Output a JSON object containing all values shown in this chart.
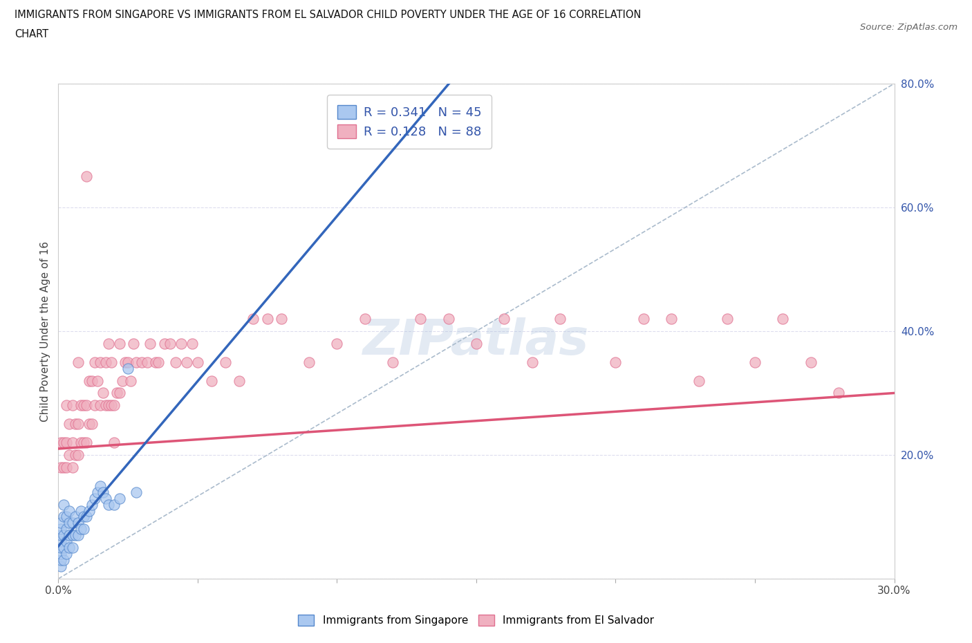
{
  "title_line1": "IMMIGRANTS FROM SINGAPORE VS IMMIGRANTS FROM EL SALVADOR CHILD POVERTY UNDER THE AGE OF 16 CORRELATION",
  "title_line2": "CHART",
  "source_text": "Source: ZipAtlas.com",
  "ylabel": "Child Poverty Under the Age of 16",
  "x_min": 0.0,
  "x_max": 0.3,
  "y_min": 0.0,
  "y_max": 0.8,
  "singapore_color": "#aac8f0",
  "singapore_edge_color": "#5588cc",
  "el_salvador_color": "#f0b0c0",
  "el_salvador_edge_color": "#e07090",
  "singapore_line_color": "#3366bb",
  "el_salvador_line_color": "#dd5577",
  "R_singapore": 0.341,
  "N_singapore": 45,
  "R_el_salvador": 0.128,
  "N_el_salvador": 88,
  "legend_text_color": "#3355aa",
  "diag_color": "#aabbcc",
  "grid_color": "#ddddee",
  "singapore_x": [
    0.001,
    0.001,
    0.001,
    0.001,
    0.001,
    0.001,
    0.001,
    0.001,
    0.002,
    0.002,
    0.002,
    0.002,
    0.002,
    0.003,
    0.003,
    0.003,
    0.003,
    0.004,
    0.004,
    0.004,
    0.004,
    0.005,
    0.005,
    0.005,
    0.006,
    0.006,
    0.007,
    0.007,
    0.008,
    0.008,
    0.009,
    0.009,
    0.01,
    0.011,
    0.012,
    0.013,
    0.014,
    0.015,
    0.016,
    0.017,
    0.018,
    0.02,
    0.022,
    0.025,
    0.028
  ],
  "singapore_y": [
    0.02,
    0.03,
    0.04,
    0.05,
    0.06,
    0.07,
    0.08,
    0.09,
    0.03,
    0.05,
    0.07,
    0.1,
    0.12,
    0.04,
    0.06,
    0.08,
    0.1,
    0.05,
    0.07,
    0.09,
    0.11,
    0.05,
    0.07,
    0.09,
    0.07,
    0.1,
    0.07,
    0.09,
    0.08,
    0.11,
    0.08,
    0.1,
    0.1,
    0.11,
    0.12,
    0.13,
    0.14,
    0.15,
    0.14,
    0.13,
    0.12,
    0.12,
    0.13,
    0.34,
    0.14
  ],
  "el_salvador_x": [
    0.001,
    0.001,
    0.002,
    0.002,
    0.003,
    0.003,
    0.003,
    0.004,
    0.004,
    0.005,
    0.005,
    0.005,
    0.006,
    0.006,
    0.007,
    0.007,
    0.007,
    0.008,
    0.008,
    0.009,
    0.009,
    0.01,
    0.01,
    0.011,
    0.011,
    0.012,
    0.012,
    0.013,
    0.013,
    0.014,
    0.015,
    0.015,
    0.016,
    0.017,
    0.017,
    0.018,
    0.018,
    0.019,
    0.019,
    0.02,
    0.021,
    0.022,
    0.022,
    0.023,
    0.024,
    0.025,
    0.026,
    0.027,
    0.028,
    0.03,
    0.032,
    0.033,
    0.035,
    0.036,
    0.038,
    0.04,
    0.042,
    0.044,
    0.046,
    0.048,
    0.05,
    0.055,
    0.06,
    0.065,
    0.07,
    0.075,
    0.08,
    0.09,
    0.1,
    0.11,
    0.12,
    0.13,
    0.14,
    0.15,
    0.16,
    0.17,
    0.18,
    0.2,
    0.21,
    0.22,
    0.23,
    0.24,
    0.25,
    0.26,
    0.27,
    0.28,
    0.01,
    0.02
  ],
  "el_salvador_y": [
    0.18,
    0.22,
    0.18,
    0.22,
    0.18,
    0.22,
    0.28,
    0.2,
    0.25,
    0.18,
    0.22,
    0.28,
    0.2,
    0.25,
    0.2,
    0.25,
    0.35,
    0.22,
    0.28,
    0.22,
    0.28,
    0.22,
    0.28,
    0.25,
    0.32,
    0.25,
    0.32,
    0.28,
    0.35,
    0.32,
    0.28,
    0.35,
    0.3,
    0.28,
    0.35,
    0.28,
    0.38,
    0.28,
    0.35,
    0.28,
    0.3,
    0.3,
    0.38,
    0.32,
    0.35,
    0.35,
    0.32,
    0.38,
    0.35,
    0.35,
    0.35,
    0.38,
    0.35,
    0.35,
    0.38,
    0.38,
    0.35,
    0.38,
    0.35,
    0.38,
    0.35,
    0.32,
    0.35,
    0.32,
    0.42,
    0.42,
    0.42,
    0.35,
    0.38,
    0.42,
    0.35,
    0.42,
    0.42,
    0.38,
    0.42,
    0.35,
    0.42,
    0.35,
    0.42,
    0.42,
    0.32,
    0.42,
    0.35,
    0.42,
    0.35,
    0.3,
    0.65,
    0.22
  ]
}
